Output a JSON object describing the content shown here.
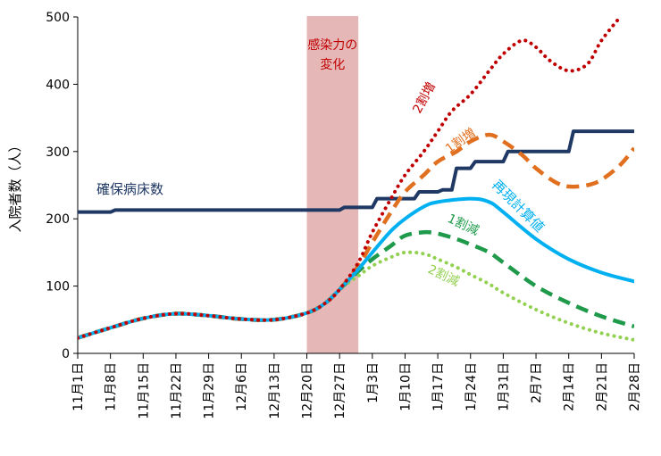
{
  "chart_data": {
    "type": "line",
    "ylabel": "入院者数（人）",
    "ylim": [
      0,
      500
    ],
    "yticks": [
      0,
      100,
      200,
      300,
      400,
      500
    ],
    "x_tick_labels": [
      "11月1日",
      "11月8日",
      "11月15日",
      "11月22日",
      "11月29日",
      "12月6日",
      "12月13日",
      "12月20日",
      "12月27日",
      "1月3日",
      "1月10日",
      "1月17日",
      "1月24日",
      "1月31日",
      "2月7日",
      "2月14日",
      "2月21日",
      "2月28日"
    ],
    "x_range_days": [
      0,
      119
    ],
    "highlight_band": {
      "label": "感染力の\n変化",
      "x_start_day": 49,
      "x_end_day": 60,
      "color": "#e6b7b7"
    },
    "grid": false,
    "series": [
      {
        "name": "確保病床数",
        "color": "#1f3864",
        "style": "solid",
        "x": [
          0,
          7,
          8,
          56,
          57,
          63,
          64,
          72,
          73,
          77,
          78,
          80,
          81,
          84,
          85,
          91,
          92,
          105,
          106,
          119
        ],
        "values": [
          210,
          210,
          213,
          213,
          217,
          217,
          230,
          230,
          240,
          240,
          243,
          243,
          275,
          275,
          285,
          285,
          300,
          300,
          330,
          330
        ]
      },
      {
        "name": "再現計算値",
        "color": "#00b0f0",
        "style": "solid",
        "x": [
          0,
          7,
          14,
          21,
          28,
          35,
          42,
          49,
          53,
          56,
          60,
          63,
          67,
          70,
          74,
          77,
          84,
          88,
          91,
          98,
          105,
          112,
          119
        ],
        "values": [
          23,
          38,
          52,
          59,
          56,
          51,
          50,
          60,
          75,
          95,
          125,
          150,
          182,
          200,
          218,
          225,
          230,
          225,
          210,
          170,
          140,
          120,
          107
        ]
      },
      {
        "name": "2割増",
        "color": "#c00000",
        "style": "dotted",
        "x": [
          0,
          7,
          14,
          21,
          28,
          35,
          42,
          49,
          53,
          56,
          60,
          63,
          67,
          70,
          74,
          77,
          80,
          84,
          88,
          91,
          95,
          98,
          101,
          105,
          109,
          112,
          116
        ],
        "values": [
          23,
          38,
          52,
          59,
          56,
          51,
          50,
          60,
          75,
          95,
          135,
          180,
          230,
          265,
          300,
          330,
          360,
          385,
          420,
          445,
          465,
          455,
          435,
          420,
          430,
          465,
          500
        ]
      },
      {
        "name": "1割増",
        "color": "#e07020",
        "style": "dashed",
        "x": [
          0,
          7,
          14,
          21,
          28,
          35,
          42,
          49,
          53,
          56,
          60,
          63,
          67,
          70,
          74,
          77,
          81,
          84,
          88,
          91,
          95,
          98,
          102,
          105,
          109,
          112,
          116,
          119
        ],
        "values": [
          23,
          38,
          52,
          59,
          56,
          51,
          50,
          60,
          75,
          95,
          130,
          165,
          210,
          240,
          265,
          285,
          300,
          315,
          325,
          315,
          295,
          275,
          255,
          248,
          250,
          258,
          280,
          305
        ]
      },
      {
        "name": "1割減",
        "color": "#1e9a4a",
        "style": "dashed",
        "x": [
          0,
          7,
          14,
          21,
          28,
          35,
          42,
          49,
          53,
          56,
          60,
          63,
          67,
          70,
          74,
          77,
          81,
          84,
          88,
          91,
          98,
          105,
          112,
          119
        ],
        "values": [
          23,
          38,
          52,
          59,
          56,
          51,
          50,
          60,
          75,
          95,
          122,
          140,
          160,
          175,
          180,
          178,
          170,
          162,
          150,
          135,
          100,
          75,
          55,
          40
        ]
      },
      {
        "name": "2割減",
        "color": "#92d050",
        "style": "dotted",
        "x": [
          0,
          7,
          14,
          21,
          28,
          35,
          42,
          49,
          53,
          56,
          60,
          63,
          67,
          70,
          74,
          77,
          81,
          84,
          88,
          91,
          98,
          105,
          112,
          119
        ],
        "values": [
          23,
          38,
          52,
          59,
          56,
          51,
          50,
          60,
          75,
          95,
          115,
          130,
          143,
          150,
          148,
          140,
          128,
          117,
          103,
          90,
          65,
          45,
          30,
          20
        ]
      }
    ]
  },
  "annotations": {
    "bed_label": "確保病床数",
    "recalc_label": "再現計算値",
    "up20_label": "2割増",
    "up10_label": "1割増",
    "down10_label": "1割減",
    "down20_label": "2割減"
  }
}
